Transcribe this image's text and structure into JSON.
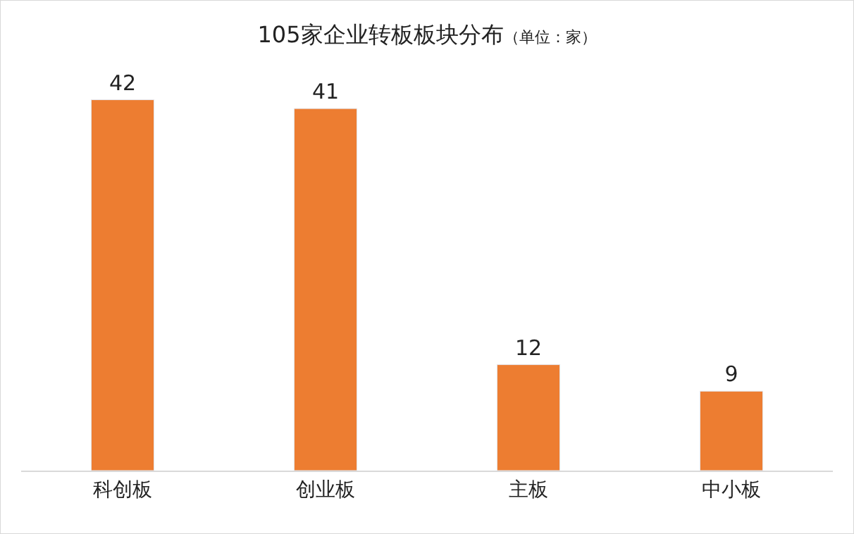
{
  "chart_data": {
    "type": "bar",
    "title": "105家企业转板板块分布",
    "subtitle": "（单位：家）",
    "categories": [
      "科创板",
      "创业板",
      "主板",
      "中小板"
    ],
    "values": [
      42,
      41,
      12,
      9
    ],
    "color": "#ed7d31",
    "data_labels": true,
    "legend": false
  }
}
